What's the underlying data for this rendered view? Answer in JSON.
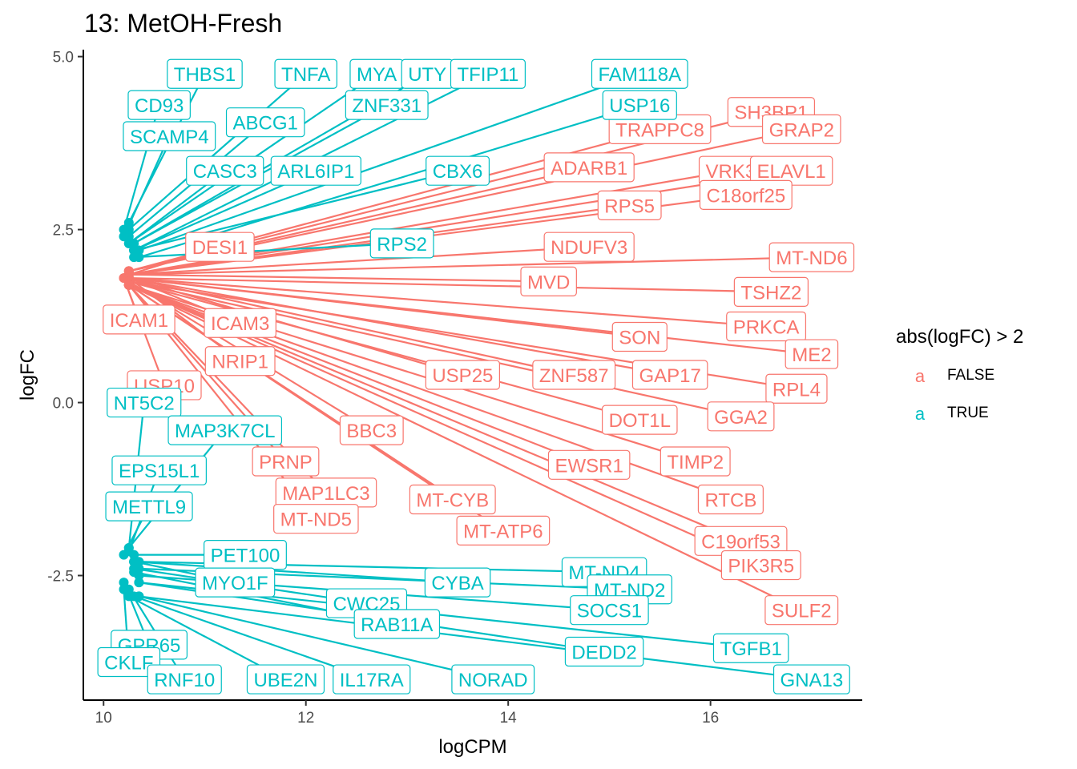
{
  "chart_data": {
    "type": "scatter",
    "title": "13: MetOH-Fresh",
    "xlabel": "logCPM",
    "ylabel": "logFC",
    "xlim": [
      9.8,
      17.5
    ],
    "ylim": [
      -4.3,
      5.1
    ],
    "x_ticks": [
      10,
      12,
      14,
      16
    ],
    "x_tick_labels": [
      "10",
      "12",
      "14",
      "16"
    ],
    "y_ticks": [
      5,
      2.5,
      0,
      -2.5
    ],
    "y_tick_labels": [
      "5.0",
      "2.5",
      "0.0",
      "-2.5"
    ],
    "grid": false,
    "legend": {
      "title": "abs(logFC) > 2",
      "position": "right",
      "entries": [
        {
          "key": "a",
          "label": "FALSE",
          "color": "#F8766D"
        },
        {
          "key": "a",
          "label": "TRUE",
          "color": "#00BFC4"
        }
      ]
    },
    "colors": {
      "FALSE": "#F8766D",
      "TRUE": "#00BFC4"
    },
    "points_true_high": [
      {
        "label": "THBS1",
        "x": 10.25,
        "y": 2.6,
        "lx": 11.0,
        "ly": 4.75
      },
      {
        "label": "TNFA",
        "x": 10.25,
        "y": 2.5,
        "lx": 12.0,
        "ly": 4.75
      },
      {
        "label": "MYA",
        "x": 10.25,
        "y": 2.3,
        "lx": 12.7,
        "ly": 4.75
      },
      {
        "label": "UTY",
        "x": 10.3,
        "y": 2.3,
        "lx": 13.2,
        "ly": 4.75
      },
      {
        "label": "TFIP11",
        "x": 10.3,
        "y": 2.2,
        "lx": 13.8,
        "ly": 4.75
      },
      {
        "label": "FAM118A",
        "x": 10.35,
        "y": 2.2,
        "lx": 15.3,
        "ly": 4.75
      },
      {
        "label": "CD93",
        "x": 10.2,
        "y": 2.5,
        "lx": 10.55,
        "ly": 4.3
      },
      {
        "label": "ZNF331",
        "x": 10.3,
        "y": 2.3,
        "lx": 12.8,
        "ly": 4.3
      },
      {
        "label": "USP16",
        "x": 10.35,
        "y": 2.1,
        "lx": 15.3,
        "ly": 4.3
      },
      {
        "label": "ABCG1",
        "x": 10.25,
        "y": 2.4,
        "lx": 11.6,
        "ly": 4.05
      },
      {
        "label": "SCAMP4",
        "x": 10.2,
        "y": 2.4,
        "lx": 10.65,
        "ly": 3.85
      },
      {
        "label": "CASC3",
        "x": 10.25,
        "y": 2.3,
        "lx": 11.2,
        "ly": 3.35
      },
      {
        "label": "ARL6IP1",
        "x": 10.3,
        "y": 2.2,
        "lx": 12.1,
        "ly": 3.35
      },
      {
        "label": "CBX6",
        "x": 10.3,
        "y": 2.2,
        "lx": 13.5,
        "ly": 3.35
      },
      {
        "label": "RPS2",
        "x": 10.3,
        "y": 2.1,
        "lx": 12.95,
        "ly": 2.3
      }
    ],
    "points_false": [
      {
        "label": "SH3BP1",
        "x": 10.25,
        "y": 1.9,
        "lx": 16.6,
        "ly": 4.2
      },
      {
        "label": "GRAP2",
        "x": 10.25,
        "y": 1.9,
        "lx": 16.9,
        "ly": 3.95
      },
      {
        "label": "TRAPPC8",
        "x": 10.25,
        "y": 1.9,
        "lx": 15.5,
        "ly": 3.95
      },
      {
        "label": "ADARB1",
        "x": 10.25,
        "y": 1.9,
        "lx": 14.8,
        "ly": 3.4
      },
      {
        "label": "VRK3",
        "x": 10.25,
        "y": 1.85,
        "lx": 16.2,
        "ly": 3.35
      },
      {
        "label": "ELAVL1",
        "x": 10.25,
        "y": 1.85,
        "lx": 16.8,
        "ly": 3.35
      },
      {
        "label": "C18orf25",
        "x": 10.25,
        "y": 1.85,
        "lx": 16.35,
        "ly": 3.0
      },
      {
        "label": "RPS5",
        "x": 10.25,
        "y": 1.85,
        "lx": 15.2,
        "ly": 2.85
      },
      {
        "label": "NDUFV3",
        "x": 10.25,
        "y": 1.85,
        "lx": 14.8,
        "ly": 2.25
      },
      {
        "label": "MT-ND6",
        "x": 10.25,
        "y": 1.85,
        "lx": 17.0,
        "ly": 2.1
      },
      {
        "label": "DESI1",
        "x": 10.25,
        "y": 1.85,
        "lx": 11.15,
        "ly": 2.25
      },
      {
        "label": "MVD",
        "x": 10.25,
        "y": 1.85,
        "lx": 14.4,
        "ly": 1.75
      },
      {
        "label": "TSHZ2",
        "x": 10.25,
        "y": 1.8,
        "lx": 16.6,
        "ly": 1.6
      },
      {
        "label": "ICAM1",
        "x": 10.2,
        "y": 1.8,
        "lx": 10.35,
        "ly": 1.2
      },
      {
        "label": "ICAM3",
        "x": 10.25,
        "y": 1.8,
        "lx": 11.35,
        "ly": 1.15
      },
      {
        "label": "PRKCA",
        "x": 10.25,
        "y": 1.8,
        "lx": 16.55,
        "ly": 1.1
      },
      {
        "label": "SON",
        "x": 10.25,
        "y": 1.8,
        "lx": 15.3,
        "ly": 0.95
      },
      {
        "label": "ME2",
        "x": 10.25,
        "y": 1.8,
        "lx": 17.0,
        "ly": 0.7
      },
      {
        "label": "NRIP1",
        "x": 10.25,
        "y": 1.8,
        "lx": 11.35,
        "ly": 0.6
      },
      {
        "label": "USP10",
        "x": 10.2,
        "y": 1.8,
        "lx": 10.6,
        "ly": 0.25
      },
      {
        "label": "USP25",
        "x": 10.25,
        "y": 1.8,
        "lx": 13.55,
        "ly": 0.4
      },
      {
        "label": "ZNF587",
        "x": 10.25,
        "y": 1.8,
        "lx": 14.65,
        "ly": 0.4
      },
      {
        "label": "GAP17",
        "x": 10.25,
        "y": 1.8,
        "lx": 15.6,
        "ly": 0.4
      },
      {
        "label": "RPL4",
        "x": 10.25,
        "y": 1.75,
        "lx": 16.85,
        "ly": 0.2
      },
      {
        "label": "DOT1L",
        "x": 10.25,
        "y": 1.75,
        "lx": 15.3,
        "ly": -0.25
      },
      {
        "label": "GGA2",
        "x": 10.25,
        "y": 1.75,
        "lx": 16.3,
        "ly": -0.2
      },
      {
        "label": "BBC3",
        "x": 10.25,
        "y": 1.75,
        "lx": 12.65,
        "ly": -0.4
      },
      {
        "label": "PRNP",
        "x": 10.25,
        "y": 1.7,
        "lx": 11.8,
        "ly": -0.85
      },
      {
        "label": "EWSR1",
        "x": 10.25,
        "y": 1.7,
        "lx": 14.8,
        "ly": -0.9
      },
      {
        "label": "TIMP2",
        "x": 10.25,
        "y": 1.7,
        "lx": 15.85,
        "ly": -0.85
      },
      {
        "label": "MAP1LC3",
        "x": 10.25,
        "y": 1.7,
        "lx": 12.2,
        "ly": -1.3
      },
      {
        "label": "MT-CYB",
        "x": 10.25,
        "y": 1.7,
        "lx": 13.45,
        "ly": -1.4
      },
      {
        "label": "RTCB",
        "x": 10.25,
        "y": 1.7,
        "lx": 16.2,
        "ly": -1.4
      },
      {
        "label": "MT-ND5",
        "x": 10.25,
        "y": 1.7,
        "lx": 12.1,
        "ly": -1.68
      },
      {
        "label": "MT-ATP6",
        "x": 10.25,
        "y": 1.7,
        "lx": 13.95,
        "ly": -1.85
      },
      {
        "label": "C19orf53",
        "x": 10.25,
        "y": 1.7,
        "lx": 16.3,
        "ly": -2.0
      },
      {
        "label": "SULF2",
        "x": 10.25,
        "y": 1.7,
        "lx": 16.9,
        "ly": -3.0
      },
      {
        "label": "PIK3R5",
        "x": 10.25,
        "y": 1.7,
        "lx": 16.5,
        "ly": -2.35
      }
    ],
    "points_true_low": [
      {
        "label": "NT5C2",
        "x": 10.25,
        "y": -2.1,
        "lx": 10.4,
        "ly": 0.0
      },
      {
        "label": "MAP3K7CL",
        "x": 10.25,
        "y": -2.1,
        "lx": 11.2,
        "ly": -0.4
      },
      {
        "label": "EPS15L1",
        "x": 10.25,
        "y": -2.15,
        "lx": 10.55,
        "ly": -0.98
      },
      {
        "label": "METTL9",
        "x": 10.2,
        "y": -2.2,
        "lx": 10.45,
        "ly": -1.5
      },
      {
        "label": "PET100",
        "x": 10.3,
        "y": -2.2,
        "lx": 11.4,
        "ly": -2.2
      },
      {
        "label": "MYO1F",
        "x": 10.3,
        "y": -2.3,
        "lx": 11.3,
        "ly": -2.6
      },
      {
        "label": "CYBA",
        "x": 10.3,
        "y": -2.3,
        "lx": 13.5,
        "ly": -2.6
      },
      {
        "label": "MT-ND4",
        "x": 10.35,
        "y": -2.3,
        "lx": 14.95,
        "ly": -2.45
      },
      {
        "label": "MT-ND2",
        "x": 10.35,
        "y": -2.4,
        "lx": 15.2,
        "ly": -2.7
      },
      {
        "label": "CWC25",
        "x": 10.3,
        "y": -2.4,
        "lx": 12.6,
        "ly": -2.9
      },
      {
        "label": "RAB11A",
        "x": 10.3,
        "y": -2.45,
        "lx": 12.9,
        "ly": -3.2
      },
      {
        "label": "SOCS1",
        "x": 10.35,
        "y": -2.5,
        "lx": 15.0,
        "ly": -3.0
      },
      {
        "label": "TGFB1",
        "x": 10.35,
        "y": -2.6,
        "lx": 16.4,
        "ly": -3.55
      },
      {
        "label": "DEDD2",
        "x": 10.35,
        "y": -2.6,
        "lx": 14.95,
        "ly": -3.6
      },
      {
        "label": "GPR65",
        "x": 10.2,
        "y": -2.6,
        "lx": 10.45,
        "ly": -3.5
      },
      {
        "label": "CKLF",
        "x": 10.2,
        "y": -2.7,
        "lx": 10.25,
        "ly": -3.75
      },
      {
        "label": "RNF10",
        "x": 10.25,
        "y": -2.7,
        "lx": 10.8,
        "ly": -4.0
      },
      {
        "label": "UBE2N",
        "x": 10.25,
        "y": -2.8,
        "lx": 11.8,
        "ly": -4.0
      },
      {
        "label": "IL17RA",
        "x": 10.3,
        "y": -2.8,
        "lx": 12.65,
        "ly": -4.0
      },
      {
        "label": "NORAD",
        "x": 10.35,
        "y": -2.8,
        "lx": 13.85,
        "ly": -4.0
      },
      {
        "label": "GNA13",
        "x": 10.35,
        "y": -2.8,
        "lx": 17.0,
        "ly": -4.0
      }
    ]
  }
}
